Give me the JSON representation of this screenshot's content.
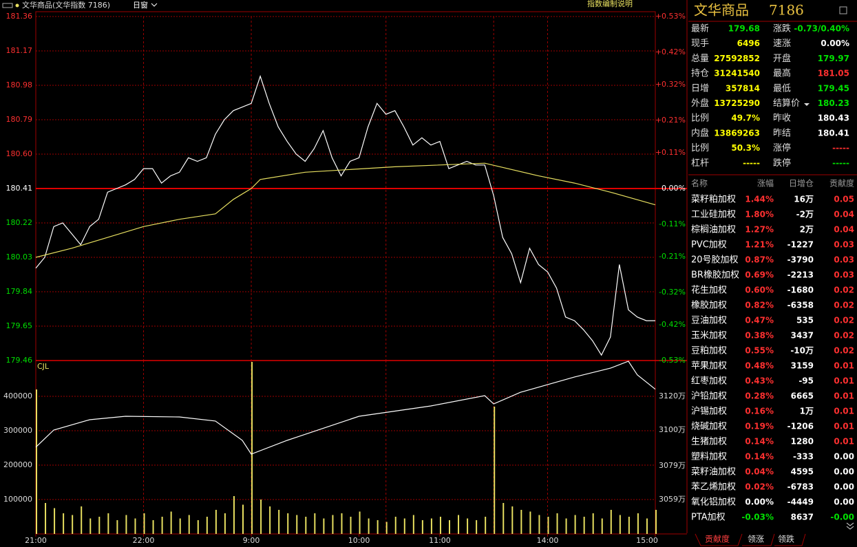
{
  "toolbar": {
    "instrument": "文华商品(文华指数  7186)",
    "window": "日窗",
    "help": "指数编制说明"
  },
  "chart_data": [
    {
      "type": "line",
      "xlim": [
        0,
        345
      ],
      "xticks": [
        {
          "value": 0,
          "label": "21:00"
        },
        {
          "value": 60,
          "label": "22:00"
        },
        {
          "value": 120,
          "label": "9:00"
        },
        {
          "value": 180,
          "label": "10:00"
        },
        {
          "value": 225,
          "label": "11:00"
        },
        {
          "value": 285,
          "label": "14:00"
        },
        {
          "value": 345,
          "label": "15:00"
        }
      ],
      "vgrid": [
        60,
        120,
        195,
        255,
        285
      ],
      "ylim": [
        179.46,
        181.36
      ],
      "yticks": [
        181.36,
        181.17,
        180.98,
        180.79,
        {
          "value": 180.6,
          "label": "180.60"
        },
        180.41,
        180.22,
        180.03,
        179.84,
        179.65,
        179.46
      ],
      "baseline": 180.41,
      "y2lim": [
        -0.53,
        0.53
      ],
      "y2ticks": [
        {
          "value": 0.53,
          "label": "+0.53%"
        },
        {
          "value": 0.42,
          "label": "+0.42%"
        },
        {
          "value": 0.32,
          "label": "+0.32%"
        },
        {
          "value": 0.21,
          "label": "+0.21%"
        },
        {
          "value": 0.11,
          "label": "+0.11%"
        },
        {
          "value": 0,
          "label": "0.00%"
        },
        {
          "value": -0.11,
          "label": "-0.11%"
        },
        {
          "value": -0.21,
          "label": "-0.21%"
        },
        {
          "value": -0.32,
          "label": "-0.32%"
        },
        {
          "value": -0.42,
          "label": "-0.42%"
        },
        {
          "value": -0.53,
          "label": "-0.53%"
        }
      ],
      "series": [
        {
          "color": "#ffffff",
          "x": [
            0,
            5,
            10,
            15,
            20,
            25,
            30,
            35,
            40,
            45,
            50,
            55,
            60,
            65,
            70,
            75,
            80,
            85,
            90,
            95,
            100,
            105,
            110,
            115,
            120,
            125,
            130,
            135,
            140,
            145,
            150,
            155,
            160,
            165,
            170,
            175,
            180,
            185,
            190,
            195,
            200,
            205,
            210,
            215,
            220,
            225,
            230,
            235,
            240,
            245,
            250,
            255,
            260,
            265,
            270,
            275,
            280,
            285,
            290,
            295,
            300,
            305,
            310,
            315,
            320,
            325,
            330,
            335,
            340,
            345
          ],
          "values": [
            179.97,
            180.03,
            180.2,
            180.22,
            180.16,
            180.1,
            180.2,
            180.24,
            180.39,
            180.41,
            180.43,
            180.46,
            180.52,
            180.52,
            180.44,
            180.48,
            180.5,
            180.58,
            180.56,
            180.58,
            180.71,
            180.79,
            180.84,
            180.86,
            180.88,
            181.03,
            180.88,
            180.75,
            180.67,
            180.6,
            180.56,
            180.63,
            180.73,
            180.58,
            180.48,
            180.56,
            180.58,
            180.75,
            180.88,
            180.82,
            180.84,
            180.75,
            180.65,
            180.69,
            180.65,
            180.67,
            180.52,
            180.54,
            180.56,
            180.54,
            180.54,
            180.37,
            180.14,
            180.05,
            179.89,
            180.08,
            179.99,
            179.95,
            179.86,
            179.7,
            179.68,
            179.63,
            179.57,
            179.49,
            179.59,
            179.99,
            179.74,
            179.7,
            179.68,
            179.68
          ]
        },
        {
          "color": "#e8e060",
          "x": [
            0,
            20,
            40,
            60,
            80,
            100,
            110,
            120,
            125,
            150,
            200,
            250,
            280,
            300,
            320,
            345
          ],
          "values": [
            180.03,
            180.08,
            180.14,
            180.2,
            180.24,
            180.27,
            180.35,
            180.41,
            180.46,
            180.5,
            180.53,
            180.55,
            180.48,
            180.44,
            180.39,
            180.32
          ]
        }
      ]
    },
    {
      "type": "bar",
      "label": "CJL",
      "color": "#e8e060",
      "xlim": [
        0,
        345
      ],
      "vgrid": [
        60,
        120,
        195,
        255,
        285
      ],
      "ylim": [
        0,
        504000
      ],
      "yticks": [
        400000,
        300000,
        200000,
        100000
      ],
      "y2lim": [
        30388000,
        31411000
      ],
      "y2ticks": [
        {
          "value": 31200000,
          "label": "3120万"
        },
        {
          "value": 31000000,
          "label": "3100万"
        },
        {
          "value": 30790000,
          "label": "3079万"
        },
        {
          "value": 30590000,
          "label": "3059万"
        }
      ],
      "x": [
        0,
        5,
        10,
        15,
        20,
        25,
        30,
        35,
        40,
        45,
        50,
        55,
        60,
        65,
        70,
        75,
        80,
        85,
        90,
        95,
        100,
        105,
        110,
        115,
        120,
        125,
        130,
        135,
        140,
        145,
        150,
        155,
        160,
        165,
        170,
        175,
        180,
        185,
        190,
        195,
        200,
        205,
        210,
        215,
        220,
        225,
        230,
        235,
        240,
        245,
        250,
        255,
        260,
        265,
        270,
        275,
        280,
        285,
        290,
        295,
        300,
        305,
        310,
        315,
        320,
        325,
        330,
        335,
        340,
        345
      ],
      "values": [
        420000,
        90000,
        75000,
        60000,
        55000,
        80000,
        45000,
        50000,
        60000,
        40000,
        55000,
        45000,
        60000,
        40000,
        50000,
        65000,
        45000,
        55000,
        40000,
        50000,
        70000,
        60000,
        110000,
        85000,
        500000,
        100000,
        80000,
        70000,
        60000,
        55000,
        50000,
        60000,
        45000,
        55000,
        60000,
        50000,
        65000,
        45000,
        40000,
        35000,
        50000,
        45000,
        55000,
        40000,
        45000,
        50000,
        40000,
        55000,
        45000,
        40000,
        50000,
        370000,
        90000,
        80000,
        70000,
        65000,
        55000,
        50000,
        60000,
        45000,
        55000,
        50000,
        60000,
        45000,
        70000,
        55000,
        50000,
        60000,
        45000,
        70000
      ],
      "series": [
        {
          "axis": "y2",
          "color": "#ffffff",
          "x": [
            0,
            10,
            30,
            50,
            80,
            100,
            115,
            120,
            140,
            180,
            220,
            250,
            255,
            270,
            300,
            320,
            330,
            335,
            345
          ],
          "values": [
            30900000,
            31001000,
            31062000,
            31082000,
            31078000,
            31054000,
            30940000,
            30859000,
            30940000,
            31082000,
            31143000,
            31204000,
            31155000,
            31224000,
            31314000,
            31366000,
            31407000,
            31326000,
            31241540
          ]
        }
      ]
    }
  ],
  "panel": {
    "name": "文华商品",
    "code": "7186",
    "quote_left": [
      {
        "label": "最新",
        "value": "179.68",
        "color": "#00e000"
      },
      {
        "label": "现手",
        "value": "6496",
        "color": "#ffff00"
      },
      {
        "label": "总量",
        "value": "27592852",
        "color": "#ffff00"
      },
      {
        "label": "持仓",
        "value": "31241540",
        "color": "#ffff00"
      },
      {
        "label": "日增",
        "value": "357814",
        "color": "#ffff00"
      },
      {
        "label": "外盘",
        "value": "13725290",
        "color": "#ffff00"
      },
      {
        "label": "比例",
        "value": "49.7%",
        "color": "#ffff00"
      },
      {
        "label": "内盘",
        "value": "13869263",
        "color": "#ffff00"
      },
      {
        "label": "比例",
        "value": "50.3%",
        "color": "#ffff00"
      },
      {
        "label": "杠杆",
        "value": "-----",
        "color": "#ffff00"
      }
    ],
    "quote_right": [
      {
        "label": "涨跌",
        "value": "-0.73/0.40%",
        "color": "#00e000"
      },
      {
        "label": "速涨",
        "value": "0.00%",
        "color": "#ffffff"
      },
      {
        "label": "开盘",
        "value": "179.97",
        "color": "#00e000"
      },
      {
        "label": "最高",
        "value": "181.05",
        "color": "#ff3030"
      },
      {
        "label": "最低",
        "value": "179.45",
        "color": "#00e000"
      },
      {
        "label": "结算价",
        "value": "180.23",
        "color": "#00e000"
      },
      {
        "label": "昨收",
        "value": "180.43",
        "color": "#ffffff"
      },
      {
        "label": "昨结",
        "value": "180.41",
        "color": "#ffffff"
      },
      {
        "label": "涨停",
        "value": "-----",
        "color": "#ff3030"
      },
      {
        "label": "跌停",
        "value": "-----",
        "color": "#00e000"
      }
    ],
    "table": {
      "columns": [
        "名称",
        "涨幅",
        "日增仓",
        "贡献度"
      ],
      "rows": [
        [
          "菜籽粕加权",
          "1.44%",
          "16万",
          "0.05"
        ],
        [
          "工业硅加权",
          "1.80%",
          "-2万",
          "0.04"
        ],
        [
          "棕榈油加权",
          "1.27%",
          "2万",
          "0.04"
        ],
        [
          "PVC加权",
          "1.21%",
          "-1227",
          "0.03"
        ],
        [
          "20号胶加权",
          "0.87%",
          "-3790",
          "0.03"
        ],
        [
          "BR橡胶加权",
          "0.69%",
          "-2213",
          "0.03"
        ],
        [
          "花生加权",
          "0.60%",
          "-1680",
          "0.02"
        ],
        [
          "橡胶加权",
          "0.82%",
          "-6358",
          "0.02"
        ],
        [
          "豆油加权",
          "0.47%",
          "535",
          "0.02"
        ],
        [
          "玉米加权",
          "0.38%",
          "3437",
          "0.02"
        ],
        [
          "豆粕加权",
          "0.55%",
          "-10万",
          "0.02"
        ],
        [
          "苹果加权",
          "0.48%",
          "3159",
          "0.01"
        ],
        [
          "红枣加权",
          "0.43%",
          "-95",
          "0.01"
        ],
        [
          "沪铅加权",
          "0.28%",
          "6665",
          "0.01"
        ],
        [
          "沪锡加权",
          "0.16%",
          "1万",
          "0.01"
        ],
        [
          "烧碱加权",
          "0.19%",
          "-1206",
          "0.01"
        ],
        [
          "生猪加权",
          "0.14%",
          "1280",
          "0.01"
        ],
        [
          "塑料加权",
          "0.14%",
          "-333",
          "0.00"
        ],
        [
          "菜籽油加权",
          "0.04%",
          "4595",
          "0.00"
        ],
        [
          "苯乙烯加权",
          "0.02%",
          "-6783",
          "0.00"
        ],
        [
          "氧化铝加权",
          "0.00%",
          "-4449",
          "0.00"
        ],
        [
          "PTA加权",
          "-0.03%",
          "8637",
          "-0.00"
        ]
      ]
    },
    "tabs": [
      "贡献度",
      "领涨",
      "领跌"
    ]
  }
}
